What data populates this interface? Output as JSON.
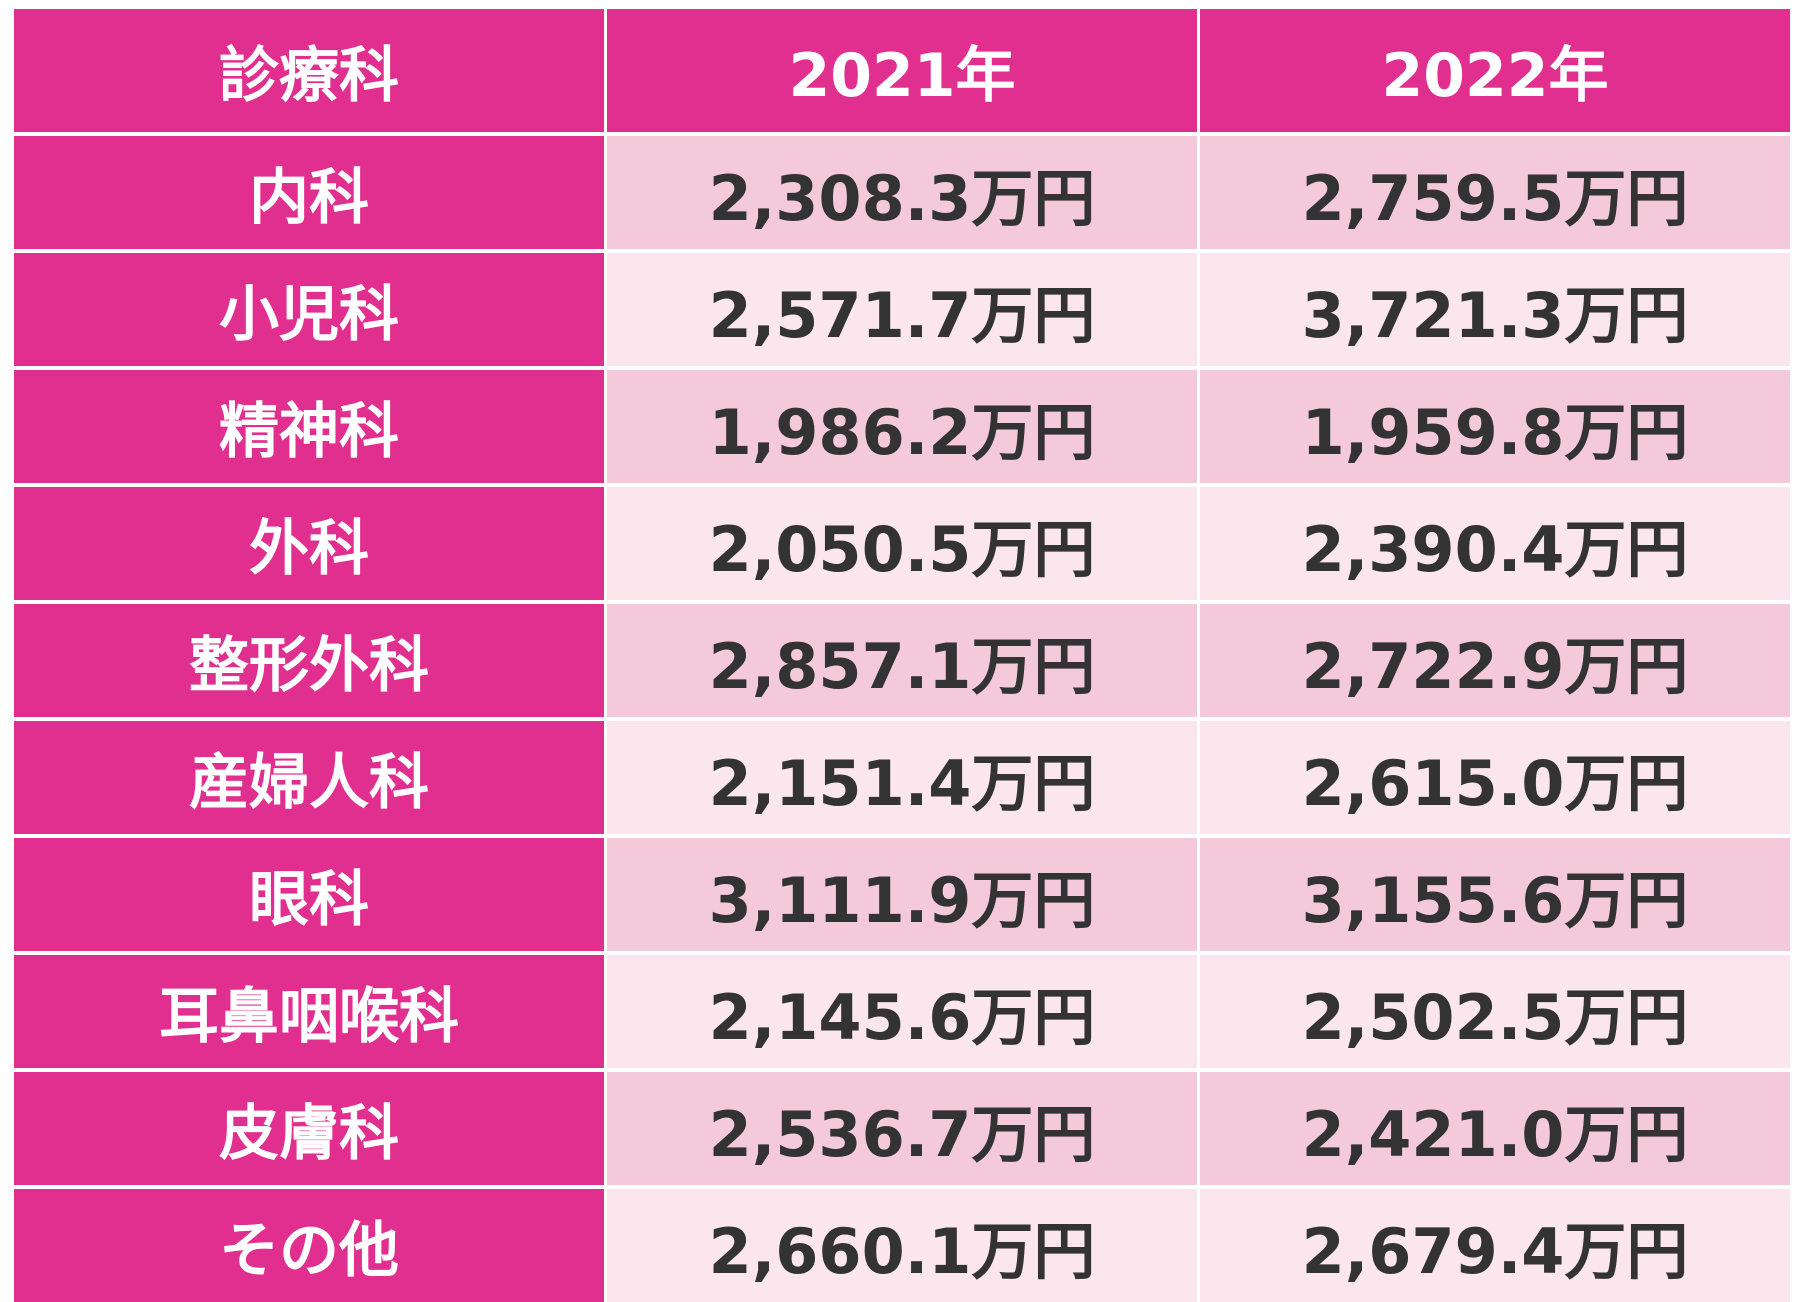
{
  "colors": {
    "header_bg": "#e12f8f",
    "label_bg": "#e12f8f",
    "row_dark": "#f4cadb",
    "row_light": "#fce6ee",
    "value_text": "#333333"
  },
  "chart_data": {
    "type": "table",
    "columns": [
      "診療科",
      "2021年",
      "2022年"
    ],
    "rows": [
      {
        "department": "内科",
        "y2021": "2,308.3万円",
        "y2022": "2,759.5万円"
      },
      {
        "department": "小児科",
        "y2021": "2,571.7万円",
        "y2022": "3,721.3万円"
      },
      {
        "department": "精神科",
        "y2021": "1,986.2万円",
        "y2022": "1,959.8万円"
      },
      {
        "department": "外科",
        "y2021": "2,050.5万円",
        "y2022": "2,390.4万円"
      },
      {
        "department": "整形外科",
        "y2021": "2,857.1万円",
        "y2022": "2,722.9万円"
      },
      {
        "department": "産婦人科",
        "y2021": "2,151.4万円",
        "y2022": "2,615.0万円"
      },
      {
        "department": "眼科",
        "y2021": "3,111.9万円",
        "y2022": "3,155.6万円"
      },
      {
        "department": "耳鼻咽喉科",
        "y2021": "2,145.6万円",
        "y2022": "2,502.5万円"
      },
      {
        "department": "皮膚科",
        "y2021": "2,536.7万円",
        "y2022": "2,421.0万円"
      },
      {
        "department": "その他",
        "y2021": "2,660.1万円",
        "y2022": "2,679.4万円"
      }
    ]
  }
}
